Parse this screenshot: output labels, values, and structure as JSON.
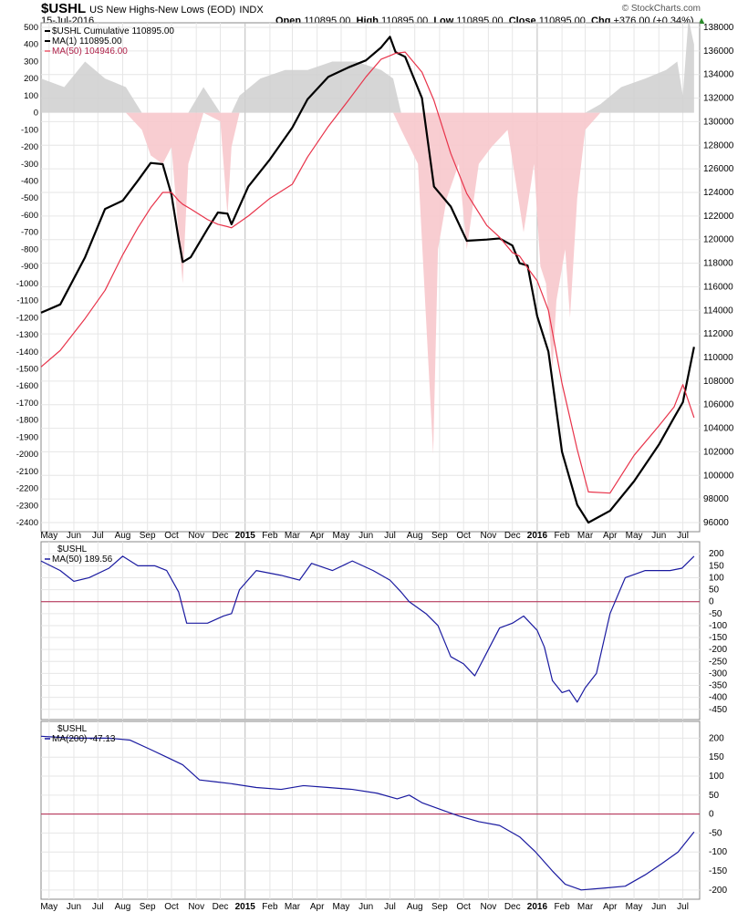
{
  "header": {
    "symbol": "$USHL",
    "description": "US New Highs-New Lows (EOD)",
    "exchange": "INDX",
    "date": "15-Jul-2016",
    "open_label": "Open",
    "open": "110895.00",
    "high_label": "High",
    "high": "110895.00",
    "low_label": "Low",
    "low": "110895.00",
    "close_label": "Close",
    "close": "110895.00",
    "chg_label": "Chg",
    "chg": "+376.00 (+0.34%)",
    "arrow_icon": "up-triangle-icon",
    "brand": "© StockCharts.com"
  },
  "colors": {
    "black": "#000000",
    "red": "#e8334a",
    "navy": "#1a1aa0",
    "fill_pos": "#cfcfcf",
    "fill_neg": "#f7c8cc",
    "grid": "#e6e6e6",
    "zero": "#b0224a"
  },
  "chart_data": [
    {
      "type": "line",
      "title": "$USHL Cumulative",
      "x": [
        "2014-04-21",
        "2014-05-15",
        "2014-06-15",
        "2014-07-10",
        "2014-08-01",
        "2014-08-20",
        "2014-09-05",
        "2014-09-20",
        "2014-10-01",
        "2014-10-10",
        "2014-10-15",
        "2014-10-25",
        "2014-11-15",
        "2014-11-28",
        "2014-12-10",
        "2014-12-15",
        "2015-01-05",
        "2015-02-01",
        "2015-03-01",
        "2015-03-20",
        "2015-04-15",
        "2015-05-10",
        "2015-06-01",
        "2015-06-20",
        "2015-07-01",
        "2015-07-08",
        "2015-07-20",
        "2015-08-10",
        "2015-08-25",
        "2015-09-15",
        "2015-10-05",
        "2015-10-30",
        "2015-11-15",
        "2015-12-01",
        "2015-12-10",
        "2015-12-20",
        "2016-01-01",
        "2016-01-15",
        "2016-02-01",
        "2016-02-20",
        "2016-03-05",
        "2016-04-01",
        "2016-05-01",
        "2016-06-01",
        "2016-06-20",
        "2016-07-01",
        "2016-07-15"
      ],
      "ylim": [
        96000,
        138000
      ],
      "y_ticks": [
        96000,
        98000,
        100000,
        102000,
        104000,
        106000,
        108000,
        110000,
        112000,
        114000,
        116000,
        118000,
        120000,
        122000,
        124000,
        126000,
        128000,
        130000,
        132000,
        134000,
        136000,
        138000
      ],
      "series": [
        {
          "name": "MA(1) 110895.00",
          "color": "#000000",
          "values": [
            113800,
            114500,
            118500,
            122600,
            123300,
            125000,
            126500,
            126400,
            123800,
            120000,
            118100,
            118500,
            120900,
            122300,
            122200,
            121300,
            124500,
            126800,
            129500,
            131900,
            133800,
            134600,
            135200,
            136300,
            137200,
            135900,
            135500,
            132000,
            124500,
            122800,
            119900,
            120000,
            120100,
            119500,
            118000,
            117800,
            113500,
            110500,
            102000,
            97500,
            96000,
            97000,
            99500,
            102600,
            104900,
            106200,
            110900
          ]
        },
        {
          "name": "MA(50) 104946.00",
          "color": "#e8334a",
          "values": [
            109200,
            110600,
            113300,
            115700,
            118700,
            121000,
            122700,
            124000,
            124000,
            123300,
            123000,
            122600,
            121700,
            121300,
            121100,
            121000,
            122000,
            123500,
            124700,
            127000,
            129600,
            131800,
            133800,
            135300,
            135600,
            135800,
            135900,
            134200,
            131800,
            127300,
            123900,
            121200,
            120200,
            118900,
            118600,
            117600,
            116500,
            114000,
            107800,
            102200,
            98600,
            98500,
            101700,
            104200,
            105800,
            107700,
            104900
          ]
        }
      ],
      "histogram": {
        "name": "$USHL",
        "ylim": [
          -2400,
          500
        ],
        "y_ticks": [
          500,
          400,
          300,
          200,
          100,
          0,
          -100,
          -200,
          -300,
          -400,
          -500,
          -600,
          -700,
          -800,
          -900,
          -1000,
          -1100,
          -1200,
          -1300,
          -1400,
          -1500,
          -1600,
          -1700,
          -1800,
          -1900,
          -2000,
          -2100,
          -2200,
          -2300,
          -2400
        ],
        "x": [
          "2014-04-21",
          "2014-05-20",
          "2014-06-15",
          "2014-07-10",
          "2014-08-05",
          "2014-08-25",
          "2014-09-05",
          "2014-09-20",
          "2014-10-01",
          "2014-10-08",
          "2014-10-15",
          "2014-10-22",
          "2014-11-10",
          "2014-12-01",
          "2014-12-10",
          "2014-12-15",
          "2014-12-25",
          "2015-01-20",
          "2015-02-20",
          "2015-03-20",
          "2015-04-20",
          "2015-05-20",
          "2015-06-20",
          "2015-07-05",
          "2015-07-15",
          "2015-08-05",
          "2015-08-15",
          "2015-08-24",
          "2015-08-30",
          "2015-09-10",
          "2015-09-25",
          "2015-10-05",
          "2015-10-20",
          "2015-11-05",
          "2015-11-25",
          "2015-12-05",
          "2015-12-15",
          "2015-12-28",
          "2016-01-05",
          "2016-01-12",
          "2016-01-20",
          "2016-01-25",
          "2016-02-05",
          "2016-02-11",
          "2016-02-20",
          "2016-03-01",
          "2016-03-20",
          "2016-04-15",
          "2016-05-15",
          "2016-06-10",
          "2016-06-24",
          "2016-07-01",
          "2016-07-08",
          "2016-07-15"
        ],
        "values": [
          200,
          150,
          300,
          200,
          150,
          -100,
          -250,
          -300,
          -200,
          -600,
          -1000,
          -300,
          150,
          -50,
          -600,
          -200,
          100,
          200,
          250,
          250,
          300,
          300,
          250,
          200,
          -100,
          -300,
          -1200,
          -2000,
          -800,
          -500,
          -300,
          -800,
          -300,
          -200,
          -100,
          -400,
          -700,
          -300,
          -900,
          -1000,
          -1500,
          -1100,
          -800,
          -1200,
          -500,
          -100,
          50,
          150,
          200,
          250,
          300,
          100,
          550,
          400
        ]
      }
    },
    {
      "type": "line",
      "title": "$USHL",
      "ylim": [
        -470,
        220
      ],
      "y_ticks": [
        200,
        150,
        100,
        50,
        0,
        -50,
        -100,
        -150,
        -200,
        -250,
        -300,
        -350,
        -400,
        -450
      ],
      "x": [
        "2014-04-21",
        "2014-05-15",
        "2014-06-01",
        "2014-06-20",
        "2014-07-15",
        "2014-08-01",
        "2014-08-20",
        "2014-09-10",
        "2014-09-25",
        "2014-10-10",
        "2014-10-20",
        "2014-11-15",
        "2014-12-05",
        "2014-12-15",
        "2014-12-25",
        "2015-01-15",
        "2015-02-15",
        "2015-03-10",
        "2015-03-25",
        "2015-04-20",
        "2015-05-15",
        "2015-06-10",
        "2015-07-01",
        "2015-07-15",
        "2015-07-25",
        "2015-08-15",
        "2015-08-30",
        "2015-09-15",
        "2015-10-01",
        "2015-10-15",
        "2015-11-01",
        "2015-11-15",
        "2015-12-01",
        "2015-12-15",
        "2016-01-01",
        "2016-01-10",
        "2016-01-20",
        "2016-02-01",
        "2016-02-10",
        "2016-02-20",
        "2016-03-01",
        "2016-03-15",
        "2016-04-01",
        "2016-04-20",
        "2016-05-15",
        "2016-06-15",
        "2016-06-30",
        "2016-07-15"
      ],
      "series": [
        {
          "name": "MA(50) 189.56",
          "color": "#1a1aa0",
          "values": [
            170,
            130,
            85,
            100,
            140,
            190,
            150,
            150,
            130,
            40,
            -90,
            -90,
            -60,
            -50,
            50,
            130,
            110,
            90,
            160,
            130,
            170,
            130,
            90,
            40,
            0,
            -50,
            -100,
            -230,
            -260,
            -310,
            -200,
            -110,
            -90,
            -60,
            -120,
            -190,
            -330,
            -380,
            -370,
            -420,
            -360,
            -300,
            -50,
            100,
            130,
            130,
            140,
            189.56
          ]
        }
      ]
    },
    {
      "type": "line",
      "title": "$USHL",
      "ylim": [
        -210,
        225
      ],
      "y_ticks": [
        200,
        150,
        100,
        50,
        0,
        -50,
        -100,
        -150,
        -200
      ],
      "x": [
        "2014-04-21",
        "2014-06-01",
        "2014-07-15",
        "2014-08-10",
        "2014-09-05",
        "2014-09-25",
        "2014-10-15",
        "2014-11-05",
        "2014-11-25",
        "2014-12-15",
        "2015-01-15",
        "2015-02-15",
        "2015-03-15",
        "2015-04-15",
        "2015-05-15",
        "2015-06-15",
        "2015-07-10",
        "2015-07-25",
        "2015-08-10",
        "2015-09-05",
        "2015-09-25",
        "2015-10-20",
        "2015-11-15",
        "2015-12-10",
        "2015-12-30",
        "2016-01-20",
        "2016-02-05",
        "2016-02-25",
        "2016-03-25",
        "2016-04-20",
        "2016-05-15",
        "2016-06-05",
        "2016-06-25",
        "2016-07-15"
      ],
      "series": [
        {
          "name": "MA(200) -47.13",
          "color": "#1a1aa0",
          "values": [
            205,
            200,
            200,
            195,
            170,
            150,
            130,
            90,
            85,
            80,
            70,
            65,
            75,
            70,
            65,
            55,
            40,
            50,
            30,
            10,
            -5,
            -20,
            -30,
            -60,
            -100,
            -150,
            -185,
            -200,
            -195,
            -190,
            -160,
            -130,
            -100,
            -47.13
          ]
        }
      ]
    }
  ],
  "x_axis": {
    "labels": [
      {
        "text": "May",
        "date": "2014-05-01"
      },
      {
        "text": "Jun",
        "date": "2014-06-01"
      },
      {
        "text": "Jul",
        "date": "2014-07-01"
      },
      {
        "text": "Aug",
        "date": "2014-08-01"
      },
      {
        "text": "Sep",
        "date": "2014-09-01"
      },
      {
        "text": "Oct",
        "date": "2014-10-01"
      },
      {
        "text": "Nov",
        "date": "2014-11-01"
      },
      {
        "text": "Dec",
        "date": "2014-12-01"
      },
      {
        "text": "2015",
        "date": "2015-01-01",
        "bold": true
      },
      {
        "text": "Feb",
        "date": "2015-02-01"
      },
      {
        "text": "Mar",
        "date": "2015-03-01"
      },
      {
        "text": "Apr",
        "date": "2015-04-01"
      },
      {
        "text": "May",
        "date": "2015-05-01"
      },
      {
        "text": "Jun",
        "date": "2015-06-01"
      },
      {
        "text": "Jul",
        "date": "2015-07-01"
      },
      {
        "text": "Aug",
        "date": "2015-08-01"
      },
      {
        "text": "Sep",
        "date": "2015-09-01"
      },
      {
        "text": "Oct",
        "date": "2015-10-01"
      },
      {
        "text": "Nov",
        "date": "2015-11-01"
      },
      {
        "text": "Dec",
        "date": "2015-12-01"
      },
      {
        "text": "2016",
        "date": "2016-01-01",
        "bold": true
      },
      {
        "text": "Feb",
        "date": "2016-02-01"
      },
      {
        "text": "Mar",
        "date": "2016-03-01"
      },
      {
        "text": "Apr",
        "date": "2016-04-01"
      },
      {
        "text": "May",
        "date": "2016-05-01"
      },
      {
        "text": "Jun",
        "date": "2016-06-01"
      },
      {
        "text": "Jul",
        "date": "2016-07-01"
      }
    ]
  },
  "legend": {
    "main": [
      "$USHL Cumulative 110895.00",
      "MA(1) 110895.00",
      "MA(50) 104946.00"
    ],
    "p2": [
      "$USHL",
      "MA(50) 189.56"
    ],
    "p3": [
      "$USHL",
      "MA(200) -47.13"
    ]
  }
}
